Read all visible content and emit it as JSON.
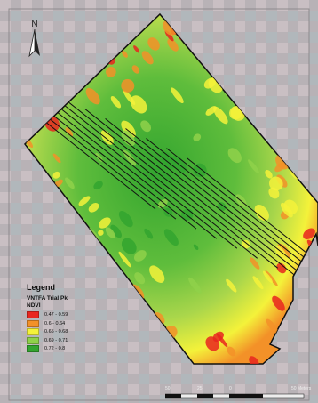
{
  "north_arrow": {
    "letter": "N",
    "icon": "north-arrow-icon"
  },
  "legend": {
    "title": "Legend",
    "layer": "VNTFA Trial Pk",
    "field": "NDVI",
    "classes": [
      {
        "label": "0.47 - 0.59",
        "color": "#e8261f"
      },
      {
        "label": "0.6 - 0.64",
        "color": "#f39128"
      },
      {
        "label": "0.65 - 0.68",
        "color": "#f4f23a"
      },
      {
        "label": "0.69 - 0.71",
        "color": "#8fd14a"
      },
      {
        "label": "0.72 - 0.8",
        "color": "#33a52f"
      }
    ]
  },
  "scale_bar": {
    "labels": [
      "50",
      "25",
      "0",
      "50 Meters"
    ]
  }
}
